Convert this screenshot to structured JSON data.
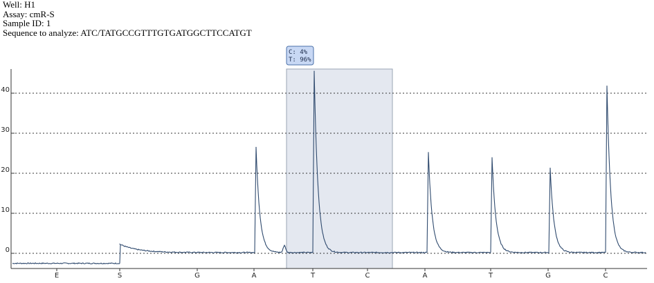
{
  "header": {
    "well": "Well: H1",
    "assay": "Assay: cmR-S",
    "sample": "Sample ID: 1",
    "sequence": "Sequence to analyze: ATC/TATGCCGTTTGTGATGGCTTCCATGT"
  },
  "chart_data": {
    "type": "line",
    "title": "",
    "xlabel": "",
    "ylabel": "",
    "ylim": [
      -3,
      46
    ],
    "y_ticks": [
      0,
      10,
      20,
      30,
      40
    ],
    "grid": "dotted horizontal",
    "dispensations": [
      "E",
      "S",
      "G",
      "A",
      "T",
      "C",
      "A",
      "T",
      "G",
      "C"
    ],
    "baseline_before": -2.5,
    "baseline_after": 0.2,
    "peaks": [
      {
        "dispensation": "S",
        "height": 2.3
      },
      {
        "dispensation": "A",
        "height": 26.5
      },
      {
        "dispensation": "T",
        "height": 1.8
      },
      {
        "dispensation": "T",
        "height": 45.5
      },
      {
        "dispensation": "A",
        "height": 25.2
      },
      {
        "dispensation": "T",
        "height": 23.9
      },
      {
        "dispensation": "G",
        "height": 21.3
      },
      {
        "dispensation": "C",
        "height": 41.8
      }
    ],
    "variable_position": {
      "dispensations": [
        "T",
        "C"
      ],
      "callout": [
        "C: 4%",
        "T: 96%"
      ],
      "highlight_color": "#e4e8f0",
      "callout_color": "#c8d8f4"
    },
    "line_color": "#2f4a6e"
  }
}
